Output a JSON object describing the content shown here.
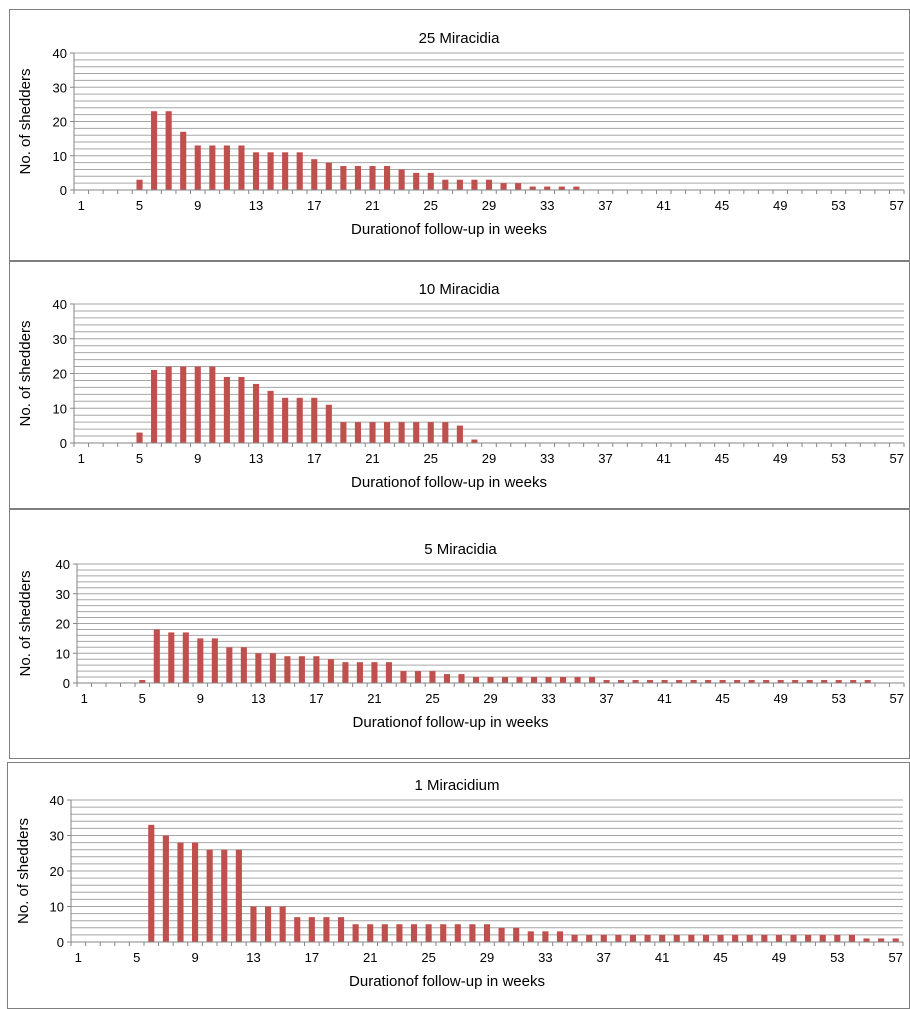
{
  "chart_data": [
    {
      "type": "bar",
      "title": "25 Miracidia",
      "xlabel": "Durationof follow-up in weeks",
      "ylabel": "No. of shedders",
      "ylim": [
        0,
        40
      ],
      "yticks": [
        "0",
        "10",
        "20",
        "30",
        "40"
      ],
      "xticks": [
        "1",
        "5",
        "9",
        "13",
        "17",
        "21",
        "25",
        "29",
        "33",
        "37",
        "41",
        "45",
        "49",
        "53",
        "57"
      ],
      "grid": true,
      "color": "#c0504d",
      "x": [
        1,
        2,
        3,
        4,
        5,
        6,
        7,
        8,
        9,
        10,
        11,
        12,
        13,
        14,
        15,
        16,
        17,
        18,
        19,
        20,
        21,
        22,
        23,
        24,
        25,
        26,
        27,
        28,
        29,
        30,
        31,
        32,
        33,
        34,
        35,
        36,
        37,
        38,
        39,
        40,
        41,
        42,
        43,
        44,
        45,
        46,
        47,
        48,
        49,
        50,
        51,
        52,
        53,
        54,
        55,
        56,
        57
      ],
      "values": [
        0,
        0,
        0,
        0,
        3,
        23,
        23,
        17,
        13,
        13,
        13,
        13,
        11,
        11,
        11,
        11,
        9,
        8,
        7,
        7,
        7,
        7,
        6,
        5,
        5,
        3,
        3,
        3,
        3,
        2,
        2,
        1,
        1,
        1,
        1,
        0,
        0,
        0,
        0,
        0,
        0,
        0,
        0,
        0,
        0,
        0,
        0,
        0,
        0,
        0,
        0,
        0,
        0,
        0,
        0,
        0,
        0
      ]
    },
    {
      "type": "bar",
      "title": "10 Miracidia",
      "xlabel": "Durationof follow-up in weeks",
      "ylabel": "No. of shedders",
      "ylim": [
        0,
        40
      ],
      "yticks": [
        "0",
        "10",
        "20",
        "30",
        "40"
      ],
      "xticks": [
        "1",
        "5",
        "9",
        "13",
        "17",
        "21",
        "25",
        "29",
        "33",
        "37",
        "41",
        "45",
        "49",
        "53",
        "57"
      ],
      "grid": true,
      "color": "#c0504d",
      "x": [
        1,
        2,
        3,
        4,
        5,
        6,
        7,
        8,
        9,
        10,
        11,
        12,
        13,
        14,
        15,
        16,
        17,
        18,
        19,
        20,
        21,
        22,
        23,
        24,
        25,
        26,
        27,
        28,
        29,
        30,
        31,
        32,
        33,
        34,
        35,
        36,
        37,
        38,
        39,
        40,
        41,
        42,
        43,
        44,
        45,
        46,
        47,
        48,
        49,
        50,
        51,
        52,
        53,
        54,
        55,
        56,
        57
      ],
      "values": [
        0,
        0,
        0,
        0,
        3,
        21,
        22,
        22,
        22,
        22,
        19,
        19,
        17,
        15,
        13,
        13,
        13,
        11,
        6,
        6,
        6,
        6,
        6,
        6,
        6,
        6,
        5,
        1,
        0,
        0,
        0,
        0,
        0,
        0,
        0,
        0,
        0,
        0,
        0,
        0,
        0,
        0,
        0,
        0,
        0,
        0,
        0,
        0,
        0,
        0,
        0,
        0,
        0,
        0,
        0,
        0,
        0
      ]
    },
    {
      "type": "bar",
      "title": "5 Miracidia",
      "xlabel": "Durationof follow-up in weeks",
      "ylabel": "No. of shedders",
      "ylim": [
        0,
        40
      ],
      "yticks": [
        "0",
        "10",
        "20",
        "30",
        "40"
      ],
      "xticks": [
        "1",
        "5",
        "9",
        "13",
        "17",
        "21",
        "25",
        "29",
        "33",
        "37",
        "41",
        "45",
        "49",
        "53",
        "57"
      ],
      "grid": true,
      "color": "#c0504d",
      "x": [
        1,
        2,
        3,
        4,
        5,
        6,
        7,
        8,
        9,
        10,
        11,
        12,
        13,
        14,
        15,
        16,
        17,
        18,
        19,
        20,
        21,
        22,
        23,
        24,
        25,
        26,
        27,
        28,
        29,
        30,
        31,
        32,
        33,
        34,
        35,
        36,
        37,
        38,
        39,
        40,
        41,
        42,
        43,
        44,
        45,
        46,
        47,
        48,
        49,
        50,
        51,
        52,
        53,
        54,
        55,
        56,
        57
      ],
      "values": [
        0,
        0,
        0,
        0,
        1,
        18,
        17,
        17,
        15,
        15,
        12,
        12,
        10,
        10,
        9,
        9,
        9,
        8,
        7,
        7,
        7,
        7,
        4,
        4,
        4,
        3,
        3,
        2,
        2,
        2,
        2,
        2,
        2,
        2,
        2,
        2,
        1,
        1,
        1,
        1,
        1,
        1,
        1,
        1,
        1,
        1,
        1,
        1,
        1,
        1,
        1,
        1,
        1,
        1,
        1,
        0,
        0
      ]
    },
    {
      "type": "bar",
      "title": "1 Miracidium",
      "xlabel": "Durationof follow-up in weeks",
      "ylabel": "No. of shedders",
      "ylim": [
        0,
        40
      ],
      "yticks": [
        "0",
        "10",
        "20",
        "30",
        "40"
      ],
      "xticks": [
        "1",
        "5",
        "9",
        "13",
        "17",
        "21",
        "25",
        "29",
        "33",
        "37",
        "41",
        "45",
        "49",
        "53",
        "57"
      ],
      "grid": true,
      "color": "#c0504d",
      "x": [
        1,
        2,
        3,
        4,
        5,
        6,
        7,
        8,
        9,
        10,
        11,
        12,
        13,
        14,
        15,
        16,
        17,
        18,
        19,
        20,
        21,
        22,
        23,
        24,
        25,
        26,
        27,
        28,
        29,
        30,
        31,
        32,
        33,
        34,
        35,
        36,
        37,
        38,
        39,
        40,
        41,
        42,
        43,
        44,
        45,
        46,
        47,
        48,
        49,
        50,
        51,
        52,
        53,
        54,
        55,
        56,
        57
      ],
      "values": [
        0,
        0,
        0,
        0,
        0,
        33,
        30,
        28,
        28,
        26,
        26,
        26,
        10,
        10,
        10,
        7,
        7,
        7,
        7,
        5,
        5,
        5,
        5,
        5,
        5,
        5,
        5,
        5,
        5,
        4,
        4,
        3,
        3,
        3,
        2,
        2,
        2,
        2,
        2,
        2,
        2,
        2,
        2,
        2,
        2,
        2,
        2,
        2,
        2,
        2,
        2,
        2,
        2,
        2,
        1,
        1,
        1
      ]
    }
  ]
}
